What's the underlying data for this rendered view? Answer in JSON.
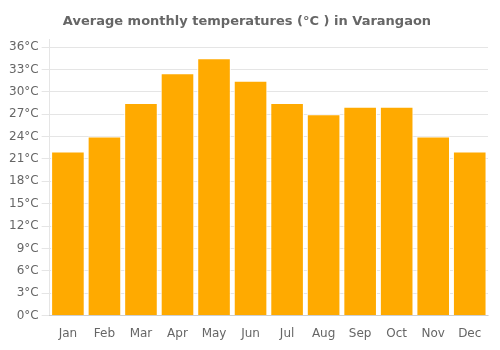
{
  "chart_data": {
    "type": "bar",
    "title": "Average monthly temperatures (°C ) in Varangaon",
    "categories": [
      "Jan",
      "Feb",
      "Mar",
      "Apr",
      "May",
      "Jun",
      "Jul",
      "Aug",
      "Sep",
      "Oct",
      "Nov",
      "Dec"
    ],
    "values": [
      22,
      24,
      28.5,
      32.5,
      34.5,
      31.5,
      28.5,
      27,
      28,
      28,
      24,
      22
    ],
    "color": "#FFAA00",
    "ylim": [
      0,
      37
    ],
    "yticks": [
      {
        "value": 0,
        "label": "0°C"
      },
      {
        "value": 3,
        "label": "3°C"
      },
      {
        "value": 6,
        "label": "6°C"
      },
      {
        "value": 9,
        "label": "9°C"
      },
      {
        "value": 12,
        "label": "12°C"
      },
      {
        "value": 15,
        "label": "15°C"
      },
      {
        "value": 18,
        "label": "18°C"
      },
      {
        "value": 21,
        "label": "21°C"
      },
      {
        "value": 24,
        "label": "24°C"
      },
      {
        "value": 27,
        "label": "27°C"
      },
      {
        "value": 30,
        "label": "30°C"
      },
      {
        "value": 33,
        "label": "33°C"
      },
      {
        "value": 36,
        "label": "36°C"
      }
    ],
    "grid": true
  }
}
